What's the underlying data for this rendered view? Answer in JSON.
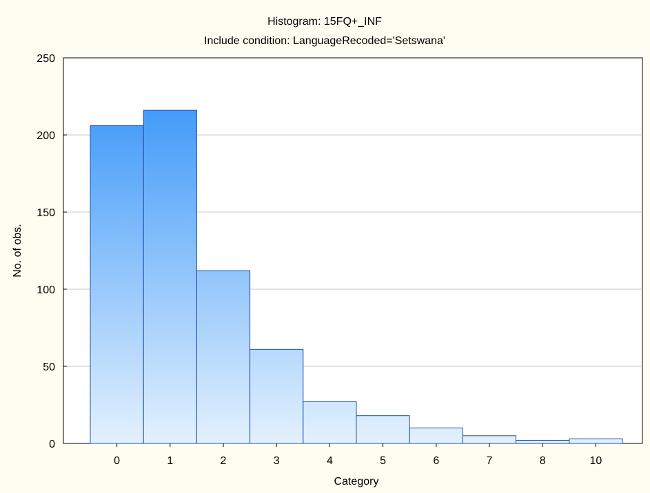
{
  "chart_data": {
    "type": "bar",
    "title": "Histogram: 15FQ+_INF",
    "subtitle": "Include condition: LanguageRecoded='Setswana'",
    "xlabel": "Category",
    "ylabel": "No. of obs.",
    "categories": [
      "0",
      "1",
      "2",
      "3",
      "4",
      "5",
      "6",
      "7",
      "8",
      "10"
    ],
    "values": [
      206,
      216,
      112,
      61,
      27,
      18,
      10,
      5,
      2,
      3
    ],
    "ylim": [
      0,
      250
    ],
    "yticks": [
      0,
      50,
      100,
      150,
      200,
      250
    ],
    "grid": true,
    "legend": "none",
    "colors": {
      "background": "#fdfdf1",
      "plot_background": "#ffffff",
      "bar_top": "#2a8ef8",
      "bar_bottom": "#e4f1fe",
      "bar_stroke": "#1f4ea8",
      "grid": "#c8c8c8"
    }
  }
}
